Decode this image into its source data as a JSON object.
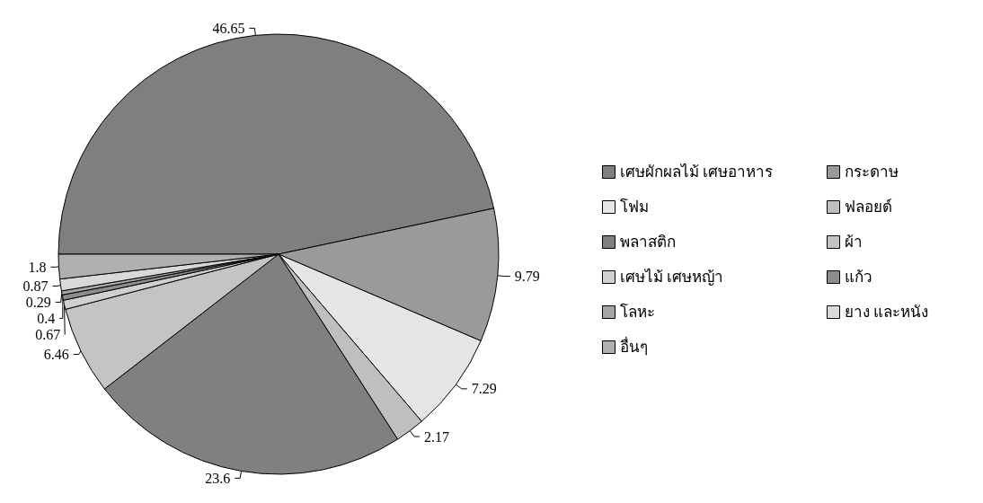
{
  "chart_data": {
    "type": "pie",
    "categories": [
      "เศษผักผลไม้ เศษอาหาร",
      "กระดาษ",
      "โฟม",
      "ฟลอยด์",
      "พลาสติก",
      "ผ้า",
      "เศษไม้ เศษหญ้า",
      "แก้ว",
      "โลหะ",
      "ยาง และหนัง",
      "อื่นๆ"
    ],
    "values": [
      46.65,
      9.79,
      7.29,
      2.17,
      23.6,
      6.46,
      0.67,
      0.4,
      0.29,
      0.87,
      1.8
    ],
    "colors": [
      "#7f7f7f",
      "#9a9a9a",
      "#e6e6e6",
      "#bfbfbf",
      "#808080",
      "#c4c4c4",
      "#d0d0d0",
      "#8c8c8c",
      "#a6a6a6",
      "#d9d9d9",
      "#b0b0b0"
    ],
    "data_labels": true,
    "legend": "right"
  }
}
